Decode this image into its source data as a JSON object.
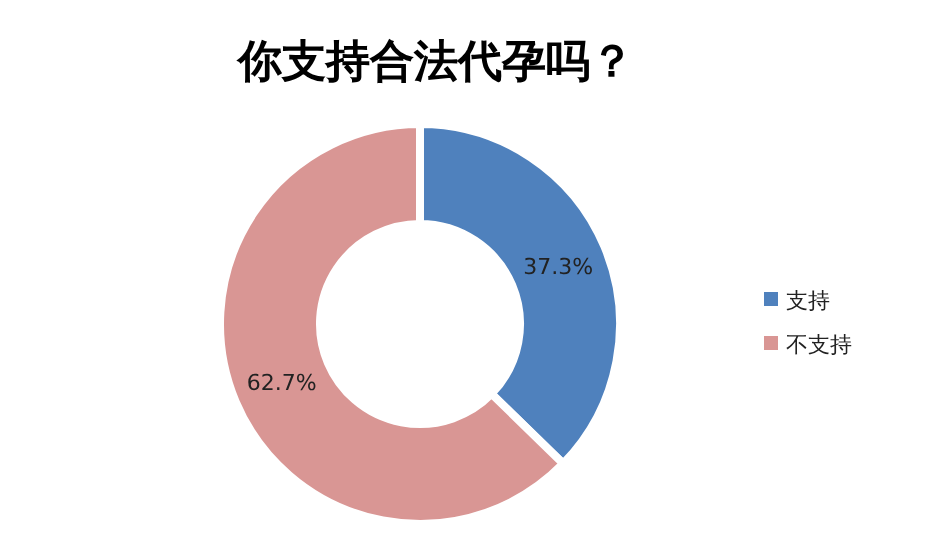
{
  "chart_data": {
    "type": "donut",
    "title": "你支持合法代孕吗？",
    "categories": [
      "支持",
      "不支持"
    ],
    "values": [
      37.3,
      62.7
    ],
    "colors": [
      "#4f81bd",
      "#d99694"
    ],
    "value_labels": [
      "37.3%",
      "62.7%"
    ],
    "legend": "right"
  }
}
